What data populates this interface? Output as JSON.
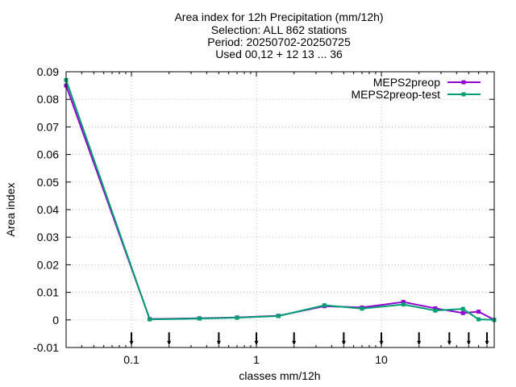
{
  "chart_data": {
    "type": "line",
    "title_lines": [
      "Area index  for 12h Precipitation (mm/12h)",
      "Selection: ALL    862 stations",
      "Period: 20250702-20250725",
      "Used 00,12 + 12 13 ... 36"
    ],
    "xlabel": "classes mm/12h",
    "ylabel": "Area index",
    "x_scale": "log",
    "xlim": [
      0.03,
      80
    ],
    "ylim": [
      -0.01,
      0.09
    ],
    "xticks": [
      {
        "value": 0.1,
        "label": "0.1"
      },
      {
        "value": 1,
        "label": "1"
      },
      {
        "value": 10,
        "label": "10"
      }
    ],
    "yticks": [
      {
        "value": -0.01,
        "label": "-0.01"
      },
      {
        "value": 0,
        "label": "0"
      },
      {
        "value": 0.01,
        "label": "0.01"
      },
      {
        "value": 0.02,
        "label": "0.02"
      },
      {
        "value": 0.03,
        "label": "0.03"
      },
      {
        "value": 0.04,
        "label": "0.04"
      },
      {
        "value": 0.05,
        "label": "0.05"
      },
      {
        "value": 0.06,
        "label": "0.06"
      },
      {
        "value": 0.07,
        "label": "0.07"
      },
      {
        "value": 0.08,
        "label": "0.08"
      },
      {
        "value": 0.09,
        "label": "0.09"
      }
    ],
    "grid": true,
    "legend_position": "top-right",
    "class_markers": [
      0.1,
      0.2,
      0.5,
      1,
      2,
      5,
      10,
      20,
      35,
      50,
      70
    ],
    "series": [
      {
        "name": "MEPS2preop",
        "color": "#9400d3",
        "x": [
          0.03,
          0.14,
          0.35,
          0.7,
          1.5,
          3.5,
          7,
          15,
          27,
          45,
          60,
          80
        ],
        "y": [
          0.085,
          0.0003,
          0.0006,
          0.0009,
          0.0015,
          0.005,
          0.0045,
          0.0065,
          0.0042,
          0.0025,
          0.003,
          0.0
        ]
      },
      {
        "name": "MEPS2preop-test",
        "color": "#009e73",
        "x": [
          0.03,
          0.14,
          0.35,
          0.7,
          1.5,
          3.5,
          7,
          15,
          27,
          45,
          60,
          80
        ],
        "y": [
          0.087,
          0.0002,
          0.0005,
          0.0008,
          0.0014,
          0.0053,
          0.0041,
          0.0056,
          0.0034,
          0.004,
          0.0002,
          0.0
        ]
      }
    ]
  }
}
